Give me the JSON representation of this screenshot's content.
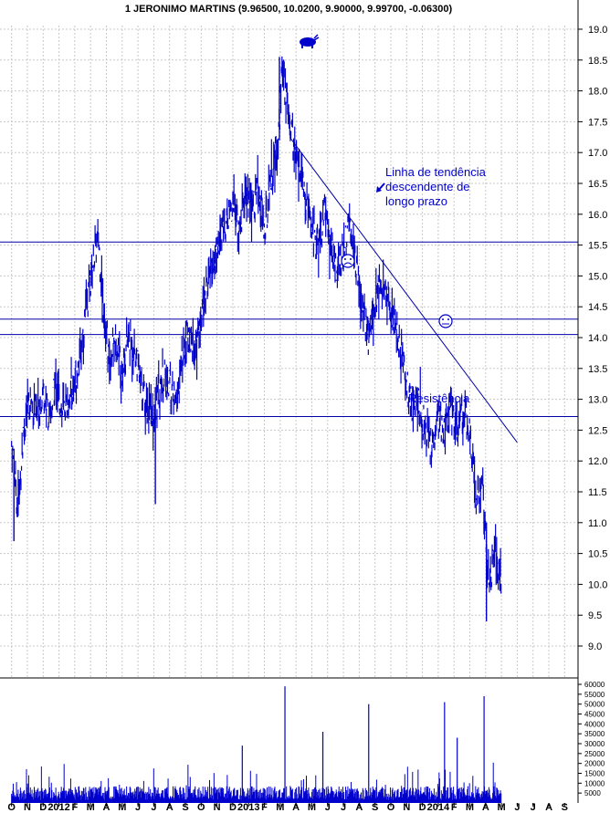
{
  "chart_data": {
    "type": "bar-ohlc",
    "title": "1 JERONIMO MARTINS (9.96500, 10.0200, 9.90000, 9.99700, -0.06300)",
    "price_axis": {
      "min": 8.5,
      "max": 19.0,
      "ticks": [
        "9.0",
        "9.5",
        "10.0",
        "10.5",
        "11.0",
        "11.5",
        "12.0",
        "12.5",
        "13.0",
        "13.5",
        "14.0",
        "14.5",
        "15.0",
        "15.5",
        "16.0",
        "16.5",
        "17.0",
        "17.5",
        "18.0",
        "18.5",
        "19.0"
      ]
    },
    "volume_axis": {
      "min": 0,
      "max": 60000,
      "ticks": [
        "5000",
        "10000",
        "15000",
        "20000",
        "25000",
        "30000",
        "35000",
        "40000",
        "45000",
        "50000",
        "55000",
        "60000"
      ]
    },
    "x_labels": [
      "O",
      "N",
      "D",
      "2012",
      "F",
      "M",
      "A",
      "M",
      "J",
      "J",
      "A",
      "S",
      "O",
      "N",
      "D",
      "2013",
      "F",
      "M",
      "A",
      "M",
      "J",
      "J",
      "A",
      "S",
      "O",
      "N",
      "D",
      "2014",
      "F",
      "M",
      "A",
      "M",
      "J",
      "J",
      "A",
      "S"
    ],
    "price_series": [
      {
        "m": 0,
        "v": 12.3
      },
      {
        "m": 0.4,
        "v": 11.2
      },
      {
        "m": 0.8,
        "v": 12.6
      },
      {
        "m": 1.2,
        "v": 13.0
      },
      {
        "m": 1.6,
        "v": 12.7
      },
      {
        "m": 2.0,
        "v": 13.2
      },
      {
        "m": 2.4,
        "v": 12.6
      },
      {
        "m": 2.8,
        "v": 13.3
      },
      {
        "m": 3.2,
        "v": 12.8
      },
      {
        "m": 3.6,
        "v": 13.0
      },
      {
        "m": 4.0,
        "v": 13.3
      },
      {
        "m": 4.4,
        "v": 13.8
      },
      {
        "m": 4.8,
        "v": 14.6
      },
      {
        "m": 5.2,
        "v": 15.3
      },
      {
        "m": 5.5,
        "v": 15.6
      },
      {
        "m": 5.8,
        "v": 14.6
      },
      {
        "m": 6.2,
        "v": 13.6
      },
      {
        "m": 6.6,
        "v": 14.0
      },
      {
        "m": 7.0,
        "v": 13.5
      },
      {
        "m": 7.4,
        "v": 14.0
      },
      {
        "m": 7.8,
        "v": 13.8
      },
      {
        "m": 8.2,
        "v": 13.2
      },
      {
        "m": 8.6,
        "v": 12.9
      },
      {
        "m": 8.9,
        "v": 12.6
      },
      {
        "m": 9.2,
        "v": 13.0
      },
      {
        "m": 9.6,
        "v": 13.4
      },
      {
        "m": 10.0,
        "v": 13.2
      },
      {
        "m": 10.4,
        "v": 12.9
      },
      {
        "m": 10.8,
        "v": 13.6
      },
      {
        "m": 11.2,
        "v": 14.1
      },
      {
        "m": 11.6,
        "v": 13.8
      },
      {
        "m": 12.0,
        "v": 14.3
      },
      {
        "m": 12.4,
        "v": 14.9
      },
      {
        "m": 12.8,
        "v": 15.2
      },
      {
        "m": 13.2,
        "v": 15.6
      },
      {
        "m": 13.6,
        "v": 15.9
      },
      {
        "m": 14.0,
        "v": 16.2
      },
      {
        "m": 14.4,
        "v": 15.7
      },
      {
        "m": 14.8,
        "v": 16.4
      },
      {
        "m": 15.2,
        "v": 16.0
      },
      {
        "m": 15.6,
        "v": 16.5
      },
      {
        "m": 16.0,
        "v": 15.7
      },
      {
        "m": 16.4,
        "v": 16.6
      },
      {
        "m": 16.8,
        "v": 17.0
      },
      {
        "m": 17.1,
        "v": 18.2
      },
      {
        "m": 17.5,
        "v": 17.8
      },
      {
        "m": 17.9,
        "v": 17.0
      },
      {
        "m": 18.2,
        "v": 16.8
      },
      {
        "m": 18.6,
        "v": 16.2
      },
      {
        "m": 19.0,
        "v": 15.8
      },
      {
        "m": 19.4,
        "v": 15.4
      },
      {
        "m": 19.8,
        "v": 16.0
      },
      {
        "m": 20.2,
        "v": 15.5
      },
      {
        "m": 20.6,
        "v": 15.0
      },
      {
        "m": 21.0,
        "v": 15.5
      },
      {
        "m": 21.4,
        "v": 15.8
      },
      {
        "m": 21.8,
        "v": 15.2
      },
      {
        "m": 22.2,
        "v": 14.4
      },
      {
        "m": 22.6,
        "v": 14.0
      },
      {
        "m": 23.0,
        "v": 14.6
      },
      {
        "m": 23.4,
        "v": 15.0
      },
      {
        "m": 23.8,
        "v": 14.6
      },
      {
        "m": 24.2,
        "v": 14.2
      },
      {
        "m": 24.6,
        "v": 13.9
      },
      {
        "m": 25.0,
        "v": 13.2
      },
      {
        "m": 25.4,
        "v": 12.9
      },
      {
        "m": 25.8,
        "v": 13.0
      },
      {
        "m": 26.2,
        "v": 12.4
      },
      {
        "m": 26.6,
        "v": 12.2
      },
      {
        "m": 27.0,
        "v": 12.7
      },
      {
        "m": 27.4,
        "v": 12.5
      },
      {
        "m": 27.8,
        "v": 12.9
      },
      {
        "m": 28.2,
        "v": 12.5
      },
      {
        "m": 28.6,
        "v": 12.8
      },
      {
        "m": 29.0,
        "v": 12.4
      },
      {
        "m": 29.4,
        "v": 11.4
      },
      {
        "m": 29.8,
        "v": 11.6
      },
      {
        "m": 30.2,
        "v": 10.0
      },
      {
        "m": 30.6,
        "v": 10.5
      },
      {
        "m": 31.0,
        "v": 10.0
      }
    ],
    "horizontal_lines": [
      15.55,
      14.3,
      14.05,
      12.72
    ],
    "trendline": {
      "from": {
        "m": 17.6,
        "v": 17.25
      },
      "to": {
        "m": 32.0,
        "v": 12.3
      }
    },
    "annotations": {
      "trend_label": [
        "Linha de tendência",
        "descendente de",
        "longo prazo"
      ],
      "resistance_label": "Resistência"
    },
    "colors": {
      "bars": "#0000cc",
      "lines": "#0000aa",
      "grid": "#c8c8c8",
      "text": "#000000",
      "annotation": "#0000cc"
    },
    "grid": true
  }
}
